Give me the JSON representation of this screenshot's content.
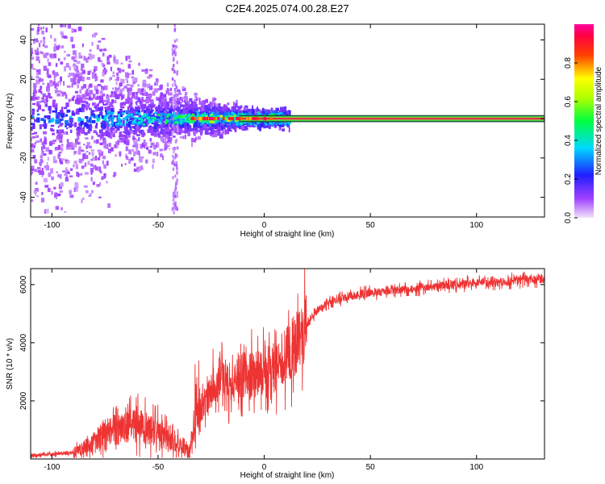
{
  "title": "C2E4.2025.074.00.28.E27",
  "colors": {
    "snr_line": "#ee3333",
    "signal_band_center": "#e0304c",
    "signal_band_edge": "#20c850",
    "background": "#ffffff"
  },
  "chart_data": [
    {
      "type": "heatmap",
      "xlabel": "Height of straight line (km)",
      "ylabel": "Frequency (Hz)",
      "xlim": [
        -110,
        132
      ],
      "ylim": [
        -50,
        48
      ],
      "xticks": [
        -100,
        -50,
        0,
        50,
        100
      ],
      "yticks": [
        -40,
        -20,
        0,
        20,
        40
      ],
      "colorbar": {
        "label": "Normalized spectral amplitude",
        "range": [
          0,
          1
        ],
        "ticks": [
          0.0,
          0.2,
          0.4,
          0.6,
          0.8
        ],
        "colormap": "rainbow (purple-blue-cyan-green-yellow-red-magenta)"
      },
      "features": {
        "signal_line_frequency_hz": 0,
        "signal_line_start_km": -12,
        "signal_line_end_km": 132,
        "noise_extent_km": [
          -110,
          12
        ],
        "noise_spike_km": -42
      }
    },
    {
      "type": "line",
      "xlabel": "Height of straight line (km)",
      "ylabel": "SNR (10 * v/v)",
      "xlim": [
        -110,
        132
      ],
      "ylim": [
        0,
        6550
      ],
      "xticks": [
        -100,
        -50,
        0,
        50,
        100
      ],
      "yticks": [
        2000,
        4000,
        6000
      ],
      "series": [
        {
          "x": [
            -110,
            -100,
            -90,
            -85,
            -80,
            -75,
            -70,
            -65,
            -60,
            -55,
            -50,
            -45,
            -40,
            -35,
            -32,
            -30,
            -25,
            -20,
            -15,
            -10,
            -5,
            0,
            5,
            10,
            15,
            20,
            25,
            30,
            40,
            50,
            60,
            70,
            80,
            90,
            100,
            110,
            120,
            132
          ],
          "values": [
            120,
            160,
            220,
            400,
            600,
            900,
            1000,
            1100,
            1150,
            1050,
            900,
            650,
            450,
            300,
            2000,
            1700,
            2400,
            2800,
            2600,
            2900,
            2900,
            3000,
            3200,
            3500,
            4000,
            4600,
            5100,
            5400,
            5600,
            5700,
            5800,
            5850,
            5950,
            6000,
            6050,
            6100,
            6150,
            6200
          ]
        }
      ]
    }
  ]
}
